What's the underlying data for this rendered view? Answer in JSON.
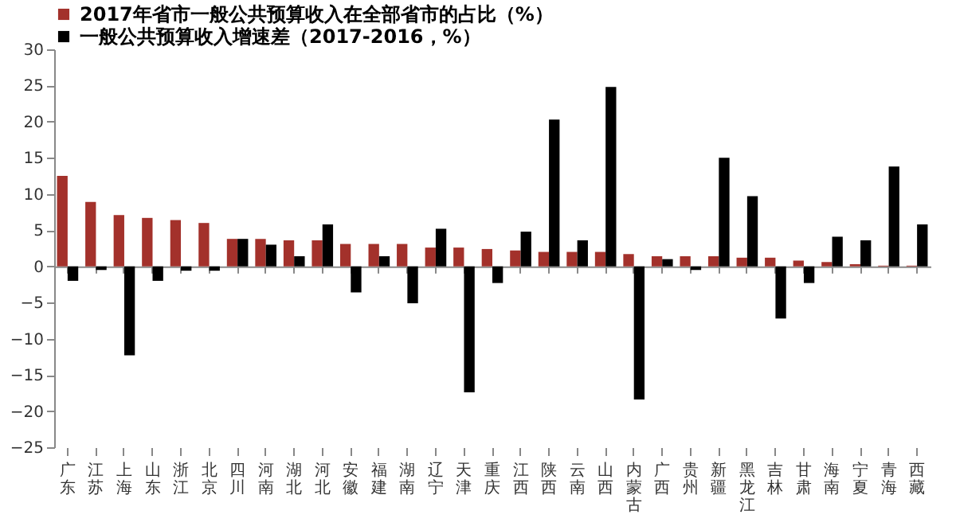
{
  "chart_data": {
    "type": "bar",
    "categories": [
      "广东",
      "江苏",
      "上海",
      "山东",
      "浙江",
      "北京",
      "四川",
      "河南",
      "湖北",
      "河北",
      "安徽",
      "福建",
      "湖南",
      "辽宁",
      "天津",
      "重庆",
      "江西",
      "陕西",
      "云南",
      "山西",
      "内蒙古",
      "广西",
      "贵州",
      "新疆",
      "黑龙江",
      "吉林",
      "甘肃",
      "海南",
      "宁夏",
      "青海",
      "西藏"
    ],
    "series": [
      {
        "name": "2017年省市一般公共预算收入在全部省市的占比（%）",
        "color": "#a3312b",
        "values": [
          12.5,
          8.9,
          7.1,
          6.7,
          6.4,
          6.0,
          3.8,
          3.8,
          3.6,
          3.6,
          3.1,
          3.1,
          3.1,
          2.6,
          2.6,
          2.4,
          2.2,
          2.0,
          2.0,
          2.0,
          1.7,
          1.4,
          1.4,
          1.4,
          1.2,
          1.2,
          0.8,
          0.6,
          0.3,
          0.1,
          0.1
        ]
      },
      {
        "name": "一般公共预算收入增速差（2017-2016，%）",
        "color": "#000000",
        "values": [
          -2.0,
          -0.5,
          -12.3,
          -2.0,
          -0.6,
          -0.6,
          3.8,
          3.0,
          1.4,
          5.8,
          -3.6,
          1.4,
          -5.1,
          5.2,
          -17.4,
          -2.3,
          4.8,
          20.3,
          3.6,
          24.8,
          -18.4,
          1.0,
          -0.5,
          15.0,
          9.7,
          -7.2,
          -2.3,
          4.1,
          3.6,
          13.8,
          5.8
        ]
      }
    ],
    "ylim": [
      -25,
      30
    ],
    "yticks": [
      -25,
      -20,
      -15,
      -10,
      -5,
      0,
      5,
      10,
      15,
      20,
      25,
      30
    ],
    "legend": "top"
  }
}
